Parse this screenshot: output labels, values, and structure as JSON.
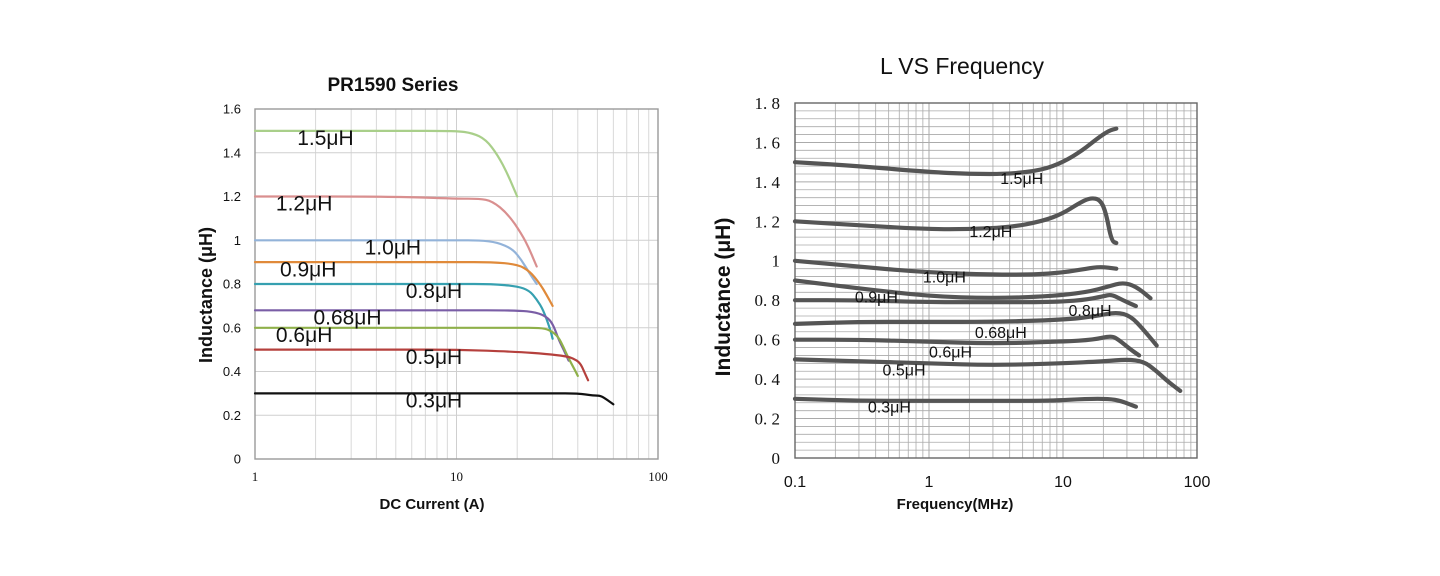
{
  "chart_data": [
    {
      "type": "line",
      "title": "PR1590 Series",
      "xlabel": "DC Current (A)",
      "ylabel": "Inductance (μH)",
      "xscale": "log",
      "xlim": [
        1,
        100
      ],
      "ylim": [
        0,
        1.6
      ],
      "xticks": [
        1,
        10,
        100
      ],
      "xtick_labels": [
        "1",
        "10",
        "100"
      ],
      "yticks": [
        0,
        0.2,
        0.4,
        0.6,
        0.8,
        1.0,
        1.2,
        1.4,
        1.6
      ],
      "ytick_labels": [
        "0",
        "0.2",
        "0.4",
        "0.6",
        "0.8",
        "1",
        "1.2",
        "1.4",
        "1.6"
      ],
      "grid": true,
      "legend": "inline labels",
      "series": [
        {
          "name": "1.5μH",
          "color": "#a9cf8a",
          "points": [
            [
              1,
              1.5
            ],
            [
              5,
              1.5
            ],
            [
              10,
              1.5
            ],
            [
              12,
              1.49
            ],
            [
              14,
              1.46
            ],
            [
              16,
              1.39
            ],
            [
              18,
              1.3
            ],
            [
              20,
              1.2
            ]
          ]
        },
        {
          "name": "1.2μH",
          "color": "#d98f8f",
          "points": [
            [
              1,
              1.2
            ],
            [
              5,
              1.2
            ],
            [
              10,
              1.19
            ],
            [
              13,
              1.19
            ],
            [
              15,
              1.18
            ],
            [
              18,
              1.12
            ],
            [
              21,
              1.03
            ],
            [
              23,
              0.96
            ],
            [
              25,
              0.88
            ]
          ]
        },
        {
          "name": "1.0μH",
          "color": "#93b3d9",
          "points": [
            [
              1,
              1.0
            ],
            [
              5,
              1.0
            ],
            [
              10,
              1.0
            ],
            [
              13,
              1.0
            ],
            [
              16,
              0.99
            ],
            [
              19,
              0.96
            ],
            [
              21,
              0.91
            ],
            [
              23,
              0.85
            ],
            [
              25,
              0.8
            ]
          ]
        },
        {
          "name": "0.9μH",
          "color": "#e08a3a",
          "points": [
            [
              1,
              0.9
            ],
            [
              5,
              0.9
            ],
            [
              10,
              0.9
            ],
            [
              15,
              0.9
            ],
            [
              20,
              0.89
            ],
            [
              23,
              0.86
            ],
            [
              26,
              0.8
            ],
            [
              28,
              0.75
            ],
            [
              30,
              0.7
            ]
          ]
        },
        {
          "name": "0.8μH",
          "color": "#36a0b0",
          "points": [
            [
              1,
              0.8
            ],
            [
              5,
              0.8
            ],
            [
              10,
              0.8
            ],
            [
              15,
              0.8
            ],
            [
              20,
              0.79
            ],
            [
              23,
              0.77
            ],
            [
              25,
              0.73
            ],
            [
              27,
              0.68
            ],
            [
              29,
              0.6
            ],
            [
              30,
              0.55
            ]
          ]
        },
        {
          "name": "0.68μH",
          "color": "#7a5ea6",
          "points": [
            [
              1,
              0.68
            ],
            [
              5,
              0.68
            ],
            [
              10,
              0.68
            ],
            [
              20,
              0.68
            ],
            [
              25,
              0.67
            ],
            [
              28,
              0.65
            ],
            [
              30,
              0.62
            ],
            [
              32,
              0.55
            ],
            [
              34,
              0.5
            ],
            [
              36,
              0.45
            ]
          ]
        },
        {
          "name": "0.6μH",
          "color": "#8fb04a",
          "points": [
            [
              1,
              0.6
            ],
            [
              5,
              0.6
            ],
            [
              10,
              0.6
            ],
            [
              20,
              0.6
            ],
            [
              26,
              0.6
            ],
            [
              29,
              0.59
            ],
            [
              32,
              0.56
            ],
            [
              34,
              0.51
            ],
            [
              36,
              0.46
            ],
            [
              38,
              0.42
            ],
            [
              40,
              0.38
            ]
          ]
        },
        {
          "name": "0.5μH",
          "color": "#b5403d",
          "points": [
            [
              1,
              0.5
            ],
            [
              5,
              0.5
            ],
            [
              10,
              0.5
            ],
            [
              20,
              0.49
            ],
            [
              28,
              0.48
            ],
            [
              35,
              0.47
            ],
            [
              38,
              0.46
            ],
            [
              41,
              0.44
            ],
            [
              43,
              0.4
            ],
            [
              45,
              0.36
            ]
          ]
        },
        {
          "name": "0.3μH",
          "color": "#111111",
          "points": [
            [
              1,
              0.3
            ],
            [
              5,
              0.3
            ],
            [
              10,
              0.3
            ],
            [
              20,
              0.3
            ],
            [
              30,
              0.3
            ],
            [
              40,
              0.3
            ],
            [
              48,
              0.29
            ],
            [
              52,
              0.29
            ],
            [
              56,
              0.27
            ],
            [
              60,
              0.25
            ]
          ]
        }
      ]
    },
    {
      "type": "line",
      "title": "L VS Frequency",
      "xlabel": "Frequency(MHz)",
      "ylabel": "Inductance (μH)",
      "xscale": "log",
      "xlim": [
        0.1,
        100
      ],
      "ylim": [
        0,
        1.8
      ],
      "xticks": [
        0.1,
        1,
        10,
        100
      ],
      "xtick_labels": [
        "0.1",
        "1",
        "10",
        "100"
      ],
      "yticks": [
        0,
        0.2,
        0.4,
        0.6,
        0.8,
        1.0,
        1.2,
        1.4,
        1.6,
        1.8
      ],
      "ytick_labels": [
        "0",
        "0. 2",
        "0. 4",
        "0. 6",
        "0. 8",
        "1",
        "1. 2",
        "1. 4",
        "1. 6",
        "1. 8"
      ],
      "grid": true,
      "legend": "inline labels",
      "series": [
        {
          "name": "1.5μH",
          "color": "#555555",
          "points": [
            [
              0.1,
              1.5
            ],
            [
              0.3,
              1.48
            ],
            [
              1,
              1.45
            ],
            [
              2,
              1.44
            ],
            [
              4,
              1.44
            ],
            [
              7,
              1.46
            ],
            [
              10,
              1.5
            ],
            [
              14,
              1.56
            ],
            [
              18,
              1.62
            ],
            [
              22,
              1.66
            ],
            [
              25,
              1.67
            ]
          ]
        },
        {
          "name": "1.2μH",
          "color": "#555555",
          "points": [
            [
              0.1,
              1.2
            ],
            [
              0.3,
              1.18
            ],
            [
              1,
              1.16
            ],
            [
              2,
              1.16
            ],
            [
              4,
              1.17
            ],
            [
              7,
              1.2
            ],
            [
              10,
              1.24
            ],
            [
              13,
              1.29
            ],
            [
              16,
              1.32
            ],
            [
              19,
              1.31
            ],
            [
              21,
              1.24
            ],
            [
              23,
              1.1
            ],
            [
              25,
              1.09
            ]
          ]
        },
        {
          "name": "1.0μH",
          "color": "#555555",
          "points": [
            [
              0.1,
              1.0
            ],
            [
              0.3,
              0.97
            ],
            [
              1,
              0.94
            ],
            [
              3,
              0.93
            ],
            [
              6,
              0.93
            ],
            [
              10,
              0.94
            ],
            [
              15,
              0.96
            ],
            [
              19,
              0.97
            ],
            [
              25,
              0.96
            ]
          ]
        },
        {
          "name": "0.9μH",
          "color": "#555555",
          "points": [
            [
              0.1,
              0.9
            ],
            [
              0.3,
              0.86
            ],
            [
              1,
              0.82
            ],
            [
              3,
              0.81
            ],
            [
              8,
              0.82
            ],
            [
              15,
              0.84
            ],
            [
              22,
              0.87
            ],
            [
              28,
              0.89
            ],
            [
              35,
              0.87
            ],
            [
              45,
              0.81
            ]
          ]
        },
        {
          "name": "0.8μH",
          "color": "#555555",
          "points": [
            [
              0.1,
              0.8
            ],
            [
              0.3,
              0.8
            ],
            [
              1,
              0.79
            ],
            [
              3,
              0.79
            ],
            [
              8,
              0.79
            ],
            [
              14,
              0.8
            ],
            [
              20,
              0.82
            ],
            [
              23,
              0.83
            ],
            [
              28,
              0.8
            ],
            [
              35,
              0.77
            ]
          ]
        },
        {
          "name": "0.68μH",
          "color": "#555555",
          "points": [
            [
              0.1,
              0.68
            ],
            [
              0.3,
              0.69
            ],
            [
              1,
              0.69
            ],
            [
              3,
              0.69
            ],
            [
              10,
              0.7
            ],
            [
              18,
              0.72
            ],
            [
              25,
              0.74
            ],
            [
              32,
              0.72
            ],
            [
              40,
              0.65
            ],
            [
              50,
              0.57
            ]
          ]
        },
        {
          "name": "0.6μH",
          "color": "#555555",
          "points": [
            [
              0.1,
              0.6
            ],
            [
              0.3,
              0.6
            ],
            [
              1,
              0.59
            ],
            [
              3,
              0.58
            ],
            [
              10,
              0.59
            ],
            [
              17,
              0.6
            ],
            [
              23,
              0.62
            ],
            [
              26,
              0.6
            ],
            [
              32,
              0.55
            ],
            [
              37,
              0.52
            ]
          ]
        },
        {
          "name": "0.5μH",
          "color": "#555555",
          "points": [
            [
              0.1,
              0.5
            ],
            [
              0.3,
              0.49
            ],
            [
              1,
              0.48
            ],
            [
              3,
              0.47
            ],
            [
              10,
              0.48
            ],
            [
              20,
              0.49
            ],
            [
              30,
              0.5
            ],
            [
              40,
              0.49
            ],
            [
              50,
              0.44
            ],
            [
              60,
              0.39
            ],
            [
              75,
              0.34
            ]
          ]
        },
        {
          "name": "0.3μH",
          "color": "#555555",
          "points": [
            [
              0.1,
              0.3
            ],
            [
              0.3,
              0.29
            ],
            [
              1,
              0.29
            ],
            [
              3,
              0.29
            ],
            [
              8,
              0.29
            ],
            [
              15,
              0.3
            ],
            [
              22,
              0.3
            ],
            [
              27,
              0.29
            ],
            [
              35,
              0.26
            ]
          ]
        }
      ]
    }
  ]
}
